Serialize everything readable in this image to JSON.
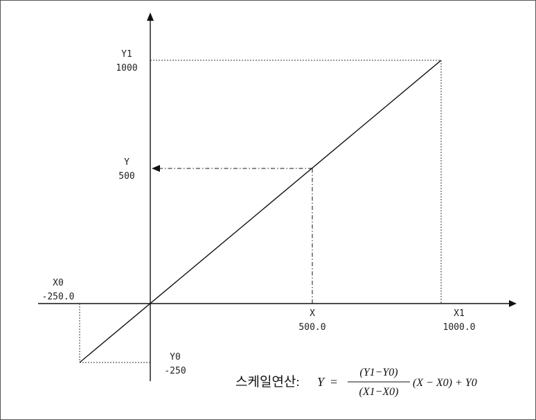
{
  "labels": {
    "y1_name": "Y1",
    "y1_value": "1000",
    "y_name": "Y",
    "y_value": "500",
    "x0_name": "X0",
    "x0_value": "-250.0",
    "x_name": "X",
    "x_value": "500.0",
    "x1_name": "X1",
    "x1_value": "1000.0",
    "y0_name": "Y0",
    "y0_value": "-250"
  },
  "formula": {
    "prefix": "스케일연산:",
    "lhs": "Y",
    "equals": "=",
    "numerator": "(Y1−Y0)",
    "denominator": "(X1−X0)",
    "tail": "(X − X0) + Y0"
  },
  "colors": {
    "line": "#111111",
    "guide": "#333333"
  }
}
